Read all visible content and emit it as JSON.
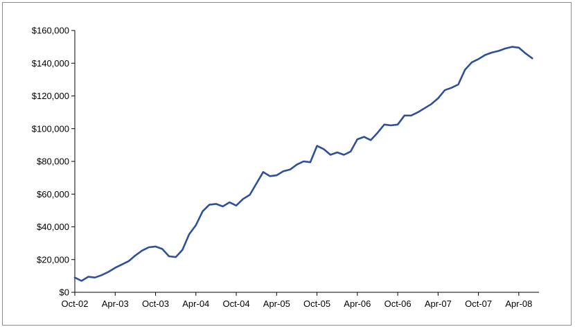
{
  "chart_data": {
    "type": "line",
    "title": "",
    "xlabel": "",
    "ylabel": "",
    "ylim": [
      0,
      160000
    ],
    "yticks": [
      0,
      20000,
      40000,
      60000,
      80000,
      100000,
      120000,
      140000,
      160000
    ],
    "ytick_labels": [
      "$0",
      "$20,000",
      "$40,000",
      "$60,000",
      "$80,000",
      "$100,000",
      "$120,000",
      "$140,000",
      "$160,000"
    ],
    "xlim": [
      "2002-10",
      "2008-07"
    ],
    "xtick_labels": [
      "Oct-02",
      "Apr-03",
      "Oct-03",
      "Apr-04",
      "Oct-04",
      "Apr-05",
      "Oct-05",
      "Apr-06",
      "Oct-06",
      "Apr-07",
      "Oct-07",
      "Apr-08"
    ],
    "xticks": [
      "2002-10",
      "2003-04",
      "2003-10",
      "2004-04",
      "2004-10",
      "2005-04",
      "2005-10",
      "2006-04",
      "2006-10",
      "2007-04",
      "2007-10",
      "2008-04"
    ],
    "grid": false,
    "legend": "none",
    "line_color": "#2e4f9e",
    "series": [
      {
        "x": [
          "2002-10",
          "2002-11",
          "2002-12",
          "2003-01",
          "2003-02",
          "2003-03",
          "2003-04",
          "2003-05",
          "2003-06",
          "2003-07",
          "2003-08",
          "2003-09",
          "2003-10",
          "2003-11",
          "2003-12",
          "2004-01",
          "2004-02",
          "2004-03",
          "2004-04",
          "2004-05",
          "2004-06",
          "2004-07",
          "2004-08",
          "2004-09",
          "2004-10",
          "2004-11",
          "2004-12",
          "2005-01",
          "2005-02",
          "2005-03",
          "2005-04",
          "2005-05",
          "2005-06",
          "2005-07",
          "2005-08",
          "2005-09",
          "2005-10",
          "2005-11",
          "2005-12",
          "2006-01",
          "2006-02",
          "2006-03",
          "2006-04",
          "2006-05",
          "2006-06",
          "2006-07",
          "2006-08",
          "2006-09",
          "2006-10",
          "2006-11",
          "2006-12",
          "2007-01",
          "2007-02",
          "2007-03",
          "2007-04",
          "2007-05",
          "2007-06",
          "2007-07",
          "2007-08",
          "2007-09",
          "2007-10",
          "2007-11",
          "2007-12",
          "2008-01",
          "2008-02",
          "2008-03",
          "2008-04",
          "2008-05",
          "2008-06"
        ],
        "y": [
          9000,
          7000,
          9500,
          9000,
          10500,
          12500,
          15000,
          17000,
          19000,
          22500,
          25500,
          27500,
          28000,
          26500,
          22000,
          21500,
          26000,
          35500,
          41000,
          49500,
          53500,
          54000,
          52500,
          55000,
          53000,
          57000,
          59500,
          66500,
          73500,
          71000,
          71500,
          74000,
          75000,
          78000,
          80000,
          79500,
          89500,
          87500,
          84000,
          85500,
          84000,
          86000,
          93500,
          95000,
          93000,
          97500,
          102500,
          102000,
          102500,
          108000,
          108000,
          110000,
          112500,
          115000,
          118500,
          123500,
          125000,
          127000,
          136000,
          140500,
          142500,
          145000,
          146500,
          147500,
          149000,
          150000,
          149500,
          146000,
          143000
        ]
      }
    ]
  }
}
